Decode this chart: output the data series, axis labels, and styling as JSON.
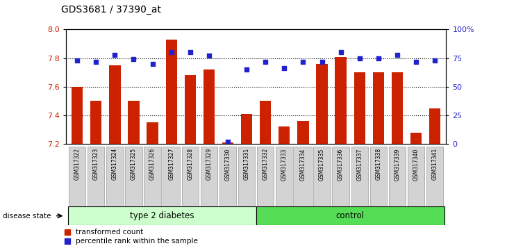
{
  "title": "GDS3681 / 37390_at",
  "samples": [
    "GSM317322",
    "GSM317323",
    "GSM317324",
    "GSM317325",
    "GSM317326",
    "GSM317327",
    "GSM317328",
    "GSM317329",
    "GSM317330",
    "GSM317331",
    "GSM317332",
    "GSM317333",
    "GSM317334",
    "GSM317335",
    "GSM317336",
    "GSM317337",
    "GSM317338",
    "GSM317339",
    "GSM317340",
    "GSM317341"
  ],
  "bar_values_all": [
    7.6,
    7.5,
    7.75,
    7.5,
    7.35,
    7.93,
    7.68,
    7.72,
    7.21,
    7.41,
    7.5,
    7.32,
    7.36,
    7.76,
    7.81,
    7.7,
    7.7,
    7.7,
    7.28,
    7.45
  ],
  "dot_values": [
    73,
    72,
    78,
    74,
    70,
    80,
    80,
    77,
    2,
    65,
    72,
    66,
    72,
    72,
    80,
    75,
    75,
    78,
    72,
    73
  ],
  "ylim_left": [
    7.2,
    8.0
  ],
  "yticks_left": [
    7.2,
    7.4,
    7.6,
    7.8,
    8.0
  ],
  "ytick_labels_right": [
    "0",
    "25",
    "50",
    "75",
    "100%"
  ],
  "yticks_right": [
    0,
    25,
    50,
    75,
    100
  ],
  "bar_color": "#cc2200",
  "dot_color": "#2222cc",
  "grid_values": [
    7.4,
    7.6,
    7.8
  ],
  "group1_label": "type 2 diabetes",
  "group2_label": "control",
  "group1_count": 10,
  "group2_count": 10,
  "legend_bar_label": "transformed count",
  "legend_dot_label": "percentile rank within the sample",
  "disease_state_label": "disease state",
  "tick_label_bg": "#d3d3d3",
  "group1_color": "#ccffcc",
  "group2_color": "#55dd55"
}
